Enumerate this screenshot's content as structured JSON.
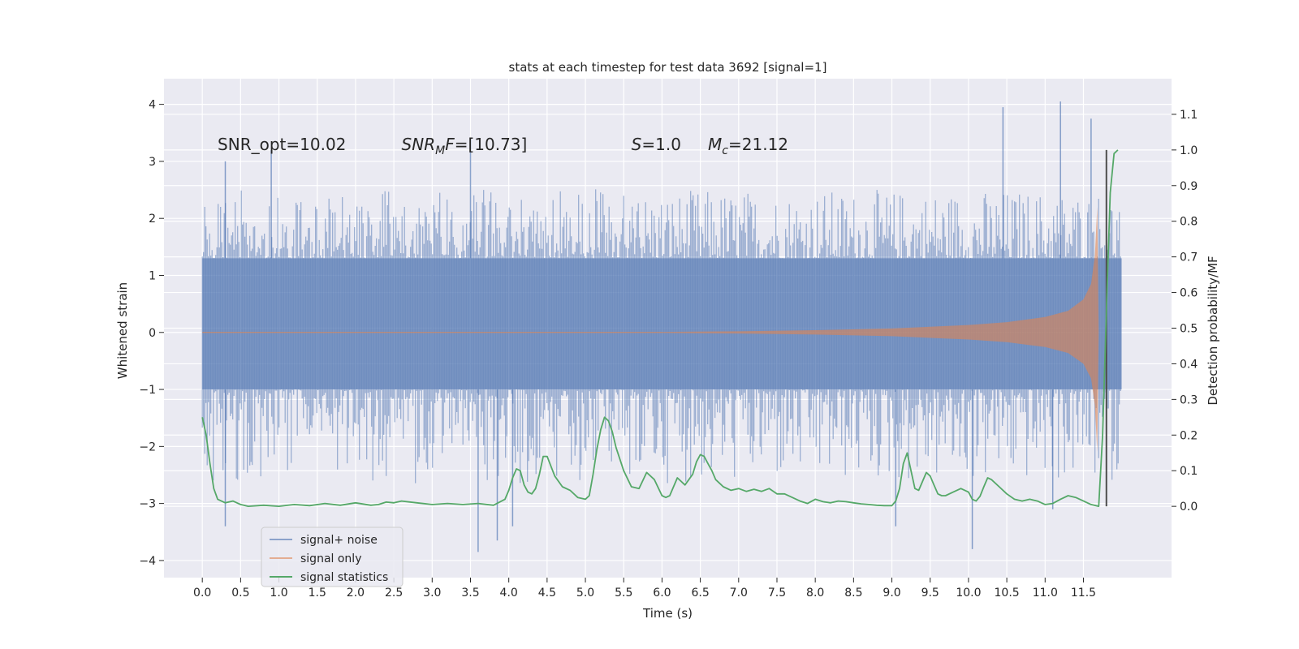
{
  "chart_data": {
    "type": "line",
    "title": "stats at each timestep for test data 3692 [signal=1]",
    "xlabel": "Time (s)",
    "ylabel_left": "Whitened strain",
    "ylabel_right": "Detection probability/MF",
    "xlim": [
      -0.5,
      12.65
    ],
    "ylim_left": [
      -4.3,
      4.45
    ],
    "ylim_right": [
      -0.2,
      1.2
    ],
    "x_ticks": [
      0.0,
      0.5,
      1.0,
      1.5,
      2.0,
      2.5,
      3.0,
      3.5,
      4.0,
      4.5,
      5.0,
      5.5,
      6.0,
      6.5,
      7.0,
      7.5,
      8.0,
      8.5,
      9.0,
      9.5,
      10.0,
      10.5,
      11.0,
      11.5
    ],
    "x_tick_labels": [
      "0.0",
      "0.5",
      "1.0",
      "1.5",
      "2.0",
      "2.5",
      "3.0",
      "3.5",
      "4.0",
      "4.5",
      "5.0",
      "5.5",
      "6.0",
      "6.5",
      "7.0",
      "7.5",
      "8.0",
      "8.5",
      "9.0",
      "9.5",
      "10.0",
      "10.5",
      "11.0",
      "11.5"
    ],
    "y_ticks_left": [
      -4,
      -3,
      -2,
      -1,
      0,
      1,
      2,
      3,
      4
    ],
    "y_tick_labels_left": [
      "−4",
      "−3",
      "−2",
      "−1",
      "0",
      "1",
      "2",
      "3",
      "4"
    ],
    "y_ticks_right": [
      0.0,
      0.1,
      0.2,
      0.3,
      0.4,
      0.5,
      0.6,
      0.7,
      0.8,
      0.9,
      1.0,
      1.1
    ],
    "y_tick_labels_right": [
      "0.0",
      "0.1",
      "0.2",
      "0.3",
      "0.4",
      "0.5",
      "0.6",
      "0.7",
      "0.8",
      "0.9",
      "1.0",
      "1.1"
    ],
    "grid": true,
    "legend_position": "lower-left",
    "colors": {
      "background": "#eaeaf2",
      "grid": "#ffffff",
      "signal_noise": "#4c72b0",
      "signal_only": "#dd8452",
      "signal_statistics": "#55a868",
      "marker_line": "#4d4d4d"
    },
    "series": [
      {
        "name": "signal+ noise",
        "axis": "left",
        "description_range": [
          0.0,
          12.0
        ],
        "envelope": {
          "dense_band": [
            -1.0,
            1.3
          ],
          "typical_spikes": [
            -2.5,
            2.4
          ],
          "extreme_max": [
            [
              0.3,
              3.0
            ],
            [
              0.9,
              3.2
            ],
            [
              3.5,
              3.4
            ],
            [
              10.45,
              3.95
            ],
            [
              11.2,
              4.05
            ],
            [
              11.6,
              3.75
            ]
          ],
          "extreme_min": [
            [
              0.3,
              -3.4
            ],
            [
              3.6,
              -3.85
            ],
            [
              3.85,
              -3.65
            ],
            [
              4.05,
              -3.4
            ],
            [
              9.05,
              -3.4
            ],
            [
              10.05,
              -3.8
            ],
            [
              11.1,
              -3.1
            ]
          ]
        }
      },
      {
        "name": "signal only",
        "axis": "left",
        "x": [
          6.0,
          7.0,
          8.0,
          9.0,
          10.0,
          10.5,
          11.0,
          11.3,
          11.5,
          11.6,
          11.65,
          11.68,
          11.7
        ],
        "amplitude": [
          0.01,
          0.02,
          0.04,
          0.07,
          0.13,
          0.18,
          0.27,
          0.38,
          0.58,
          0.85,
          1.35,
          2.2,
          0.0
        ]
      },
      {
        "name": "signal statistics",
        "axis": "right",
        "x": [
          0.0,
          0.05,
          0.1,
          0.15,
          0.2,
          0.3,
          0.4,
          0.5,
          0.6,
          0.8,
          1.0,
          1.2,
          1.4,
          1.6,
          1.8,
          2.0,
          2.2,
          2.3,
          2.4,
          2.5,
          2.6,
          2.8,
          3.0,
          3.2,
          3.4,
          3.6,
          3.8,
          3.95,
          4.0,
          4.05,
          4.1,
          4.15,
          4.2,
          4.25,
          4.3,
          4.35,
          4.4,
          4.45,
          4.5,
          4.6,
          4.7,
          4.8,
          4.9,
          5.0,
          5.05,
          5.1,
          5.15,
          5.2,
          5.25,
          5.3,
          5.35,
          5.4,
          5.5,
          5.6,
          5.7,
          5.8,
          5.9,
          6.0,
          6.05,
          6.1,
          6.2,
          6.3,
          6.4,
          6.45,
          6.5,
          6.55,
          6.6,
          6.65,
          6.7,
          6.8,
          6.9,
          7.0,
          7.1,
          7.2,
          7.3,
          7.4,
          7.5,
          7.6,
          7.7,
          7.8,
          7.9,
          8.0,
          8.1,
          8.2,
          8.3,
          8.4,
          8.5,
          8.6,
          8.7,
          8.8,
          8.9,
          9.0,
          9.05,
          9.1,
          9.15,
          9.2,
          9.25,
          9.3,
          9.35,
          9.4,
          9.45,
          9.5,
          9.55,
          9.6,
          9.65,
          9.7,
          9.8,
          9.9,
          10.0,
          10.05,
          10.1,
          10.15,
          10.2,
          10.25,
          10.3,
          10.4,
          10.5,
          10.6,
          10.7,
          10.8,
          10.9,
          11.0,
          11.1,
          11.2,
          11.3,
          11.4,
          11.5,
          11.6,
          11.7,
          11.75,
          11.8,
          11.85,
          11.9,
          11.95
        ],
        "values": [
          0.25,
          0.2,
          0.12,
          0.05,
          0.02,
          0.01,
          0.015,
          0.005,
          0.0,
          0.003,
          0.0,
          0.005,
          0.002,
          0.008,
          0.003,
          0.01,
          0.003,
          0.005,
          0.012,
          0.01,
          0.015,
          0.01,
          0.005,
          0.008,
          0.005,
          0.008,
          0.003,
          0.02,
          0.045,
          0.08,
          0.105,
          0.1,
          0.06,
          0.04,
          0.035,
          0.05,
          0.09,
          0.14,
          0.14,
          0.085,
          0.055,
          0.045,
          0.025,
          0.02,
          0.03,
          0.09,
          0.16,
          0.215,
          0.25,
          0.24,
          0.21,
          0.165,
          0.1,
          0.055,
          0.05,
          0.095,
          0.075,
          0.03,
          0.025,
          0.03,
          0.08,
          0.06,
          0.09,
          0.125,
          0.145,
          0.14,
          0.12,
          0.1,
          0.075,
          0.055,
          0.045,
          0.05,
          0.042,
          0.048,
          0.042,
          0.05,
          0.035,
          0.035,
          0.025,
          0.015,
          0.008,
          0.02,
          0.013,
          0.01,
          0.015,
          0.013,
          0.01,
          0.007,
          0.005,
          0.003,
          0.002,
          0.002,
          0.015,
          0.05,
          0.12,
          0.15,
          0.1,
          0.05,
          0.045,
          0.07,
          0.095,
          0.085,
          0.06,
          0.035,
          0.03,
          0.03,
          0.04,
          0.05,
          0.04,
          0.02,
          0.015,
          0.028,
          0.055,
          0.08,
          0.075,
          0.055,
          0.035,
          0.02,
          0.015,
          0.02,
          0.015,
          0.005,
          0.008,
          0.02,
          0.03,
          0.025,
          0.015,
          0.005,
          0.0,
          0.2,
          0.55,
          0.88,
          0.99,
          1.0
        ]
      }
    ],
    "vertical_marker": {
      "x": 11.8,
      "y_range": [
        0.0,
        1.0
      ]
    },
    "annotations": [
      {
        "plain": "SNR_opt=10.02",
        "x": 0.2,
        "y": 3.3
      },
      {
        "italic": "SNR",
        "sub": "M",
        "italic2": "F",
        "rest": "=[10.73]",
        "x": 2.6,
        "y": 3.3
      },
      {
        "italic": "S",
        "rest": "=1.0",
        "x": 5.6,
        "y": 3.3
      },
      {
        "italic": "M",
        "sub": "c",
        "rest": "=21.12",
        "x": 6.6,
        "y": 3.3
      }
    ],
    "legend": [
      {
        "label": "signal+ noise",
        "color": "#4c72b0"
      },
      {
        "label": "signal only",
        "color": "#dd8452"
      },
      {
        "label": "signal statistics",
        "color": "#55a868"
      }
    ]
  }
}
